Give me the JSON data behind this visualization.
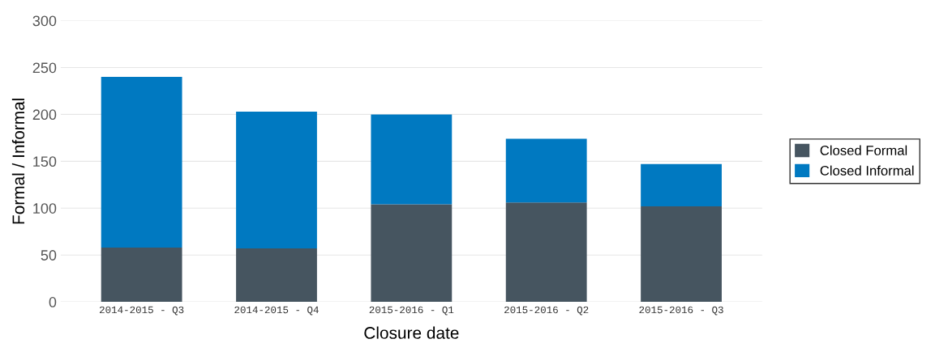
{
  "chart_data": {
    "type": "bar",
    "stacked": true,
    "xlabel": "Closure date",
    "ylabel": "Formal / Informal",
    "categories": [
      "2014-2015 - Q3",
      "2014-2015 - Q4",
      "2015-2016 - Q1",
      "2015-2016 - Q2",
      "2015-2016 - Q3"
    ],
    "series": [
      {
        "name": "Closed Formal",
        "color": "#465560",
        "values": [
          58,
          57,
          104,
          106,
          102
        ]
      },
      {
        "name": "Closed Informal",
        "color": "#0079c1",
        "values": [
          182,
          146,
          96,
          68,
          45
        ]
      }
    ],
    "ylim": [
      0,
      300
    ],
    "yticks": [
      0,
      50,
      100,
      150,
      200,
      250,
      300
    ],
    "grid": "y",
    "legend": "right"
  }
}
